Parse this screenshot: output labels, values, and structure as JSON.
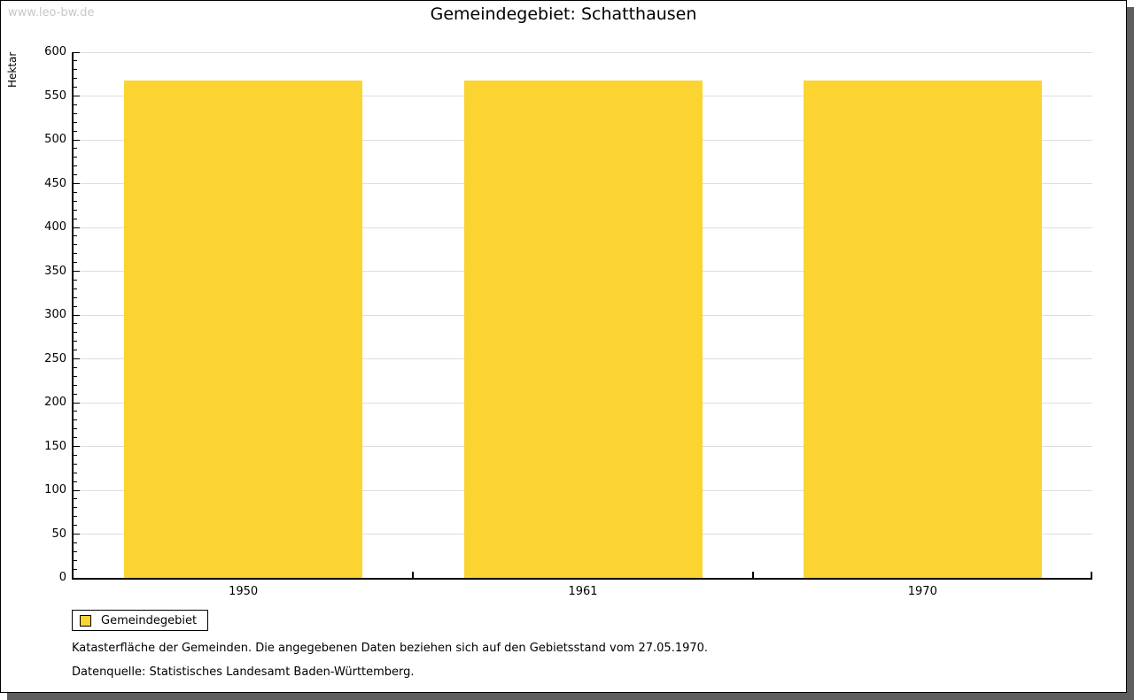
{
  "watermark": "www.leo-bw.de",
  "title": "Gemeindegebiet: Schatthausen",
  "chart_data": {
    "type": "bar",
    "title": "Gemeindegebiet: Schatthausen",
    "categories": [
      "1950",
      "1961",
      "1970"
    ],
    "series": [
      {
        "name": "Gemeindegebiet",
        "values": [
          568,
          568,
          568
        ]
      }
    ],
    "xlabel": "",
    "ylabel": "Hektar",
    "ylim": [
      0,
      600
    ],
    "y_major_tick_step": 50,
    "y_minor_tick_step": 10,
    "grid": true,
    "legend_position": "bottom-left"
  },
  "legend": {
    "entries": [
      {
        "label": "Gemeindegebiet",
        "color": "#FCD431"
      }
    ]
  },
  "footer": {
    "note": "Katasterfläche der Gemeinden. Die angegebenen Daten beziehen sich auf den Gebietsstand vom 27.05.1970.",
    "source": "Datenquelle: Statistisches Landesamt Baden-Württemberg."
  },
  "colors": {
    "bar": "#FCD431",
    "grid": "#DDDDDD",
    "axis": "#000000",
    "text": "#000000",
    "watermark": "#C8C8C8",
    "panel_border": "#000000",
    "panel_shadow": "#5E5E5E",
    "background": "#FFFFFF"
  }
}
